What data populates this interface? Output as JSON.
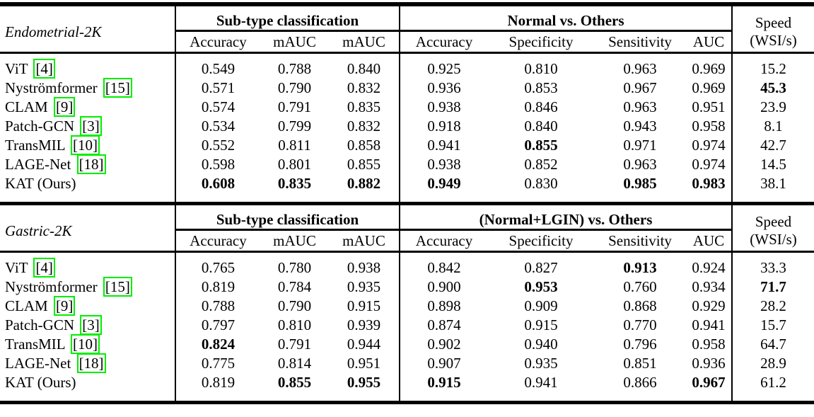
{
  "colors": {
    "citation_border": "#00ee00",
    "rule": "#000000",
    "text": "#000000",
    "background": "#ffffff"
  },
  "tables": [
    {
      "dataset": "Endometrial-2K",
      "groups": [
        {
          "title": "Sub-type classification",
          "columns": [
            "Accuracy",
            "mAUC",
            "mAUC"
          ]
        },
        {
          "title": "Normal vs. Others",
          "columns": [
            "Accuracy",
            "Specificity",
            "Sensitivity",
            "AUC"
          ]
        }
      ],
      "speed": {
        "line1": "Speed",
        "line2": "(WSI/s)"
      },
      "rows": [
        {
          "method": "ViT",
          "cite": "4",
          "values": [
            "0.549",
            "0.788",
            "0.840",
            "0.925",
            "0.810",
            "0.963",
            "0.969",
            "15.2"
          ],
          "bold": [
            0,
            0,
            0,
            0,
            0,
            0,
            0,
            0
          ]
        },
        {
          "method": "Nyströmformer",
          "cite": "15",
          "values": [
            "0.571",
            "0.790",
            "0.832",
            "0.936",
            "0.853",
            "0.967",
            "0.969",
            "45.3"
          ],
          "bold": [
            0,
            0,
            0,
            0,
            0,
            0,
            0,
            1
          ]
        },
        {
          "method": "CLAM",
          "cite": "9",
          "values": [
            "0.574",
            "0.791",
            "0.835",
            "0.938",
            "0.846",
            "0.963",
            "0.951",
            "23.9"
          ],
          "bold": [
            0,
            0,
            0,
            0,
            0,
            0,
            0,
            0
          ]
        },
        {
          "method": "Patch-GCN",
          "cite": "3",
          "values": [
            "0.534",
            "0.799",
            "0.832",
            "0.918",
            "0.840",
            "0.943",
            "0.958",
            "8.1"
          ],
          "bold": [
            0,
            0,
            0,
            0,
            0,
            0,
            0,
            0
          ]
        },
        {
          "method": "TransMIL",
          "cite": "10",
          "values": [
            "0.552",
            "0.811",
            "0.858",
            "0.941",
            "0.855",
            "0.971",
            "0.974",
            "42.7"
          ],
          "bold": [
            0,
            0,
            0,
            0,
            1,
            0,
            0,
            0
          ]
        },
        {
          "method": "LAGE-Net",
          "cite": "18",
          "values": [
            "0.598",
            "0.801",
            "0.855",
            "0.938",
            "0.852",
            "0.963",
            "0.974",
            "14.5"
          ],
          "bold": [
            0,
            0,
            0,
            0,
            0,
            0,
            0,
            0
          ]
        },
        {
          "method": "KAT (Ours)",
          "cite": null,
          "values": [
            "0.608",
            "0.835",
            "0.882",
            "0.949",
            "0.830",
            "0.985",
            "0.983",
            "38.1"
          ],
          "bold": [
            1,
            1,
            1,
            1,
            0,
            1,
            1,
            0
          ]
        }
      ]
    },
    {
      "dataset": "Gastric-2K",
      "groups": [
        {
          "title": "Sub-type classification",
          "columns": [
            "Accuracy",
            "mAUC",
            "mAUC"
          ]
        },
        {
          "title": "(Normal+LGIN) vs. Others",
          "columns": [
            "Accuracy",
            "Specificity",
            "Sensitivity",
            "AUC"
          ]
        }
      ],
      "speed": {
        "line1": "Speed",
        "line2": "(WSI/s)"
      },
      "rows": [
        {
          "method": "ViT",
          "cite": "4",
          "values": [
            "0.765",
            "0.780",
            "0.938",
            "0.842",
            "0.827",
            "0.913",
            "0.924",
            "33.3"
          ],
          "bold": [
            0,
            0,
            0,
            0,
            0,
            1,
            0,
            0
          ]
        },
        {
          "method": "Nyströmformer",
          "cite": "15",
          "values": [
            "0.819",
            "0.784",
            "0.935",
            "0.900",
            "0.953",
            "0.760",
            "0.934",
            "71.7"
          ],
          "bold": [
            0,
            0,
            0,
            0,
            1,
            0,
            0,
            1
          ]
        },
        {
          "method": "CLAM",
          "cite": "9",
          "values": [
            "0.788",
            "0.790",
            "0.915",
            "0.898",
            "0.909",
            "0.868",
            "0.929",
            "28.2"
          ],
          "bold": [
            0,
            0,
            0,
            0,
            0,
            0,
            0,
            0
          ]
        },
        {
          "method": "Patch-GCN",
          "cite": "3",
          "values": [
            "0.797",
            "0.810",
            "0.939",
            "0.874",
            "0.915",
            "0.770",
            "0.941",
            "15.7"
          ],
          "bold": [
            0,
            0,
            0,
            0,
            0,
            0,
            0,
            0
          ]
        },
        {
          "method": "TransMIL",
          "cite": "10",
          "values": [
            "0.824",
            "0.791",
            "0.944",
            "0.902",
            "0.940",
            "0.796",
            "0.958",
            "64.7"
          ],
          "bold": [
            1,
            0,
            0,
            0,
            0,
            0,
            0,
            0
          ]
        },
        {
          "method": "LAGE-Net",
          "cite": "18",
          "values": [
            "0.775",
            "0.814",
            "0.951",
            "0.907",
            "0.935",
            "0.851",
            "0.936",
            "28.9"
          ],
          "bold": [
            0,
            0,
            0,
            0,
            0,
            0,
            0,
            0
          ]
        },
        {
          "method": "KAT (Ours)",
          "cite": null,
          "values": [
            "0.819",
            "0.855",
            "0.955",
            "0.915",
            "0.941",
            "0.866",
            "0.967",
            "61.2"
          ],
          "bold": [
            0,
            1,
            1,
            1,
            0,
            0,
            1,
            0
          ]
        }
      ]
    }
  ]
}
